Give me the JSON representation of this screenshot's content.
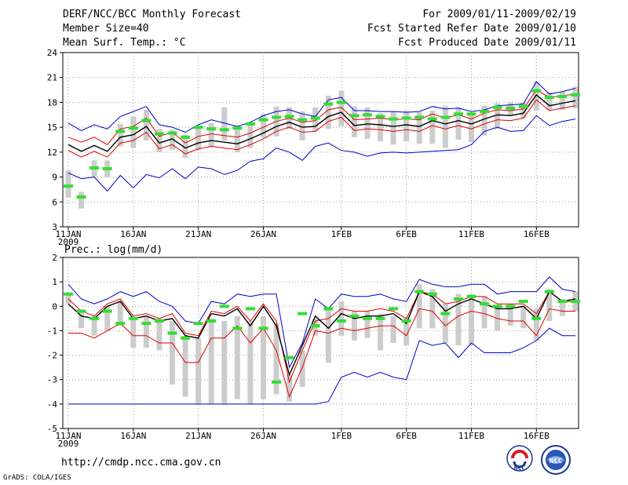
{
  "header": {
    "left": [
      "DERF/NCC/BCC Monthly Forecast",
      "Member Size=40",
      "Mean Surf. Temp.: °C"
    ],
    "right": [
      "For 2009/01/11-2009/02/19",
      "Fcst Started Refer Date 2009/01/10",
      "Fcst Produced Date 2009/01/11"
    ]
  },
  "footer": {
    "url": "http://cmdp.ncc.cma.gov.cn",
    "credit": "GrADS: COLA/IGES"
  },
  "logos": {
    "bcc_text": "BCC",
    "ncc_text": "NCC"
  },
  "colors": {
    "max_min": "#0000cc",
    "upper_lower": "#dd0000",
    "mean": "#000000",
    "box": "#cccccc",
    "observed": "#33dd33"
  },
  "chart_data": [
    {
      "type": "line",
      "title": "Mean Surf. Temp.: °C",
      "ylim": [
        3,
        24
      ],
      "yticks": [
        3,
        6,
        9,
        12,
        15,
        18,
        21,
        24
      ],
      "x_days": [
        1,
        2,
        3,
        4,
        5,
        6,
        7,
        8,
        9,
        10,
        11,
        12,
        13,
        14,
        15,
        16,
        17,
        18,
        19,
        20,
        21,
        22,
        23,
        24,
        25,
        26,
        27,
        28,
        29,
        30,
        31,
        32,
        33,
        34,
        35,
        36,
        37,
        38,
        39,
        40
      ],
      "xticks": [
        {
          "day": 1,
          "label": "11JAN",
          "sub": "2009"
        },
        {
          "day": 6,
          "label": "16JAN"
        },
        {
          "day": 11,
          "label": "21JAN"
        },
        {
          "day": 16,
          "label": "26JAN"
        },
        {
          "day": 22,
          "label": "1FEB"
        },
        {
          "day": 27,
          "label": "6FEB"
        },
        {
          "day": 32,
          "label": "11FEB"
        },
        {
          "day": 37,
          "label": "16FEB"
        }
      ],
      "series": [
        {
          "name": "max",
          "values": [
            15.5,
            14.6,
            15.3,
            14.8,
            16.3,
            16.9,
            17.5,
            15.3,
            15.0,
            14.4,
            15.3,
            15.9,
            15.5,
            15.1,
            15.6,
            16.4,
            16.9,
            17.1,
            16.6,
            16.3,
            18.3,
            18.6,
            17.0,
            17.0,
            16.9,
            16.9,
            16.8,
            16.9,
            17.5,
            17.2,
            17.3,
            16.9,
            17.1,
            17.6,
            17.7,
            17.8,
            20.5,
            19.0,
            19.3,
            19.7
          ]
        },
        {
          "name": "upper",
          "values": [
            13.8,
            13.2,
            13.8,
            12.9,
            14.8,
            15.1,
            16.1,
            13.9,
            14.4,
            13.1,
            13.9,
            14.2,
            14.0,
            13.8,
            14.3,
            15.0,
            15.7,
            16.1,
            15.6,
            15.8,
            17.1,
            17.4,
            15.9,
            16.0,
            16.1,
            15.9,
            16.0,
            15.9,
            16.6,
            16.1,
            16.5,
            16.0,
            16.7,
            17.1,
            17.0,
            17.2,
            19.5,
            18.6,
            18.8,
            19.0
          ]
        },
        {
          "name": "mean",
          "values": [
            12.9,
            12.1,
            12.8,
            12.1,
            13.8,
            14.1,
            15.1,
            13.1,
            13.6,
            12.5,
            13.1,
            13.4,
            13.2,
            13.0,
            13.6,
            14.3,
            15.1,
            15.6,
            15.0,
            15.1,
            16.3,
            16.8,
            15.2,
            15.4,
            15.3,
            15.1,
            15.3,
            15.1,
            15.8,
            15.4,
            15.8,
            15.4,
            16.0,
            16.5,
            16.4,
            16.7,
            18.9,
            17.6,
            17.9,
            18.2
          ]
        },
        {
          "name": "lower",
          "values": [
            12.2,
            11.4,
            12.1,
            11.4,
            13.1,
            13.4,
            14.4,
            12.4,
            12.9,
            11.8,
            12.4,
            12.7,
            12.5,
            12.3,
            12.9,
            13.6,
            14.5,
            15.0,
            14.4,
            14.5,
            15.7,
            16.2,
            14.6,
            14.8,
            14.7,
            14.5,
            14.7,
            14.5,
            15.2,
            14.8,
            15.2,
            14.8,
            15.4,
            15.9,
            15.8,
            16.1,
            18.3,
            17.0,
            17.3,
            17.6
          ]
        },
        {
          "name": "min",
          "values": [
            9.5,
            8.8,
            9.0,
            7.3,
            9.2,
            7.7,
            9.3,
            8.9,
            10.0,
            8.8,
            10.2,
            10.0,
            9.3,
            9.8,
            10.9,
            11.2,
            12.5,
            12.0,
            11.0,
            12.7,
            13.1,
            12.2,
            12.0,
            11.5,
            11.9,
            12.0,
            11.9,
            12.0,
            12.1,
            12.2,
            12.3,
            12.9,
            14.5,
            15.0,
            14.5,
            14.6,
            16.4,
            15.2,
            15.7,
            16.0
          ]
        },
        {
          "name": "box_top",
          "values": [
            9.8,
            7.2,
            11.0,
            11.0,
            15.4,
            16.3,
            17.1,
            14.8,
            14.7,
            14.1,
            14.9,
            15.5,
            17.4,
            15.2,
            15.4,
            16.6,
            17.5,
            17.4,
            16.9,
            17.4,
            18.8,
            19.4,
            17.5,
            17.4,
            16.7,
            16.9,
            17.0,
            16.8,
            17.0,
            17.6,
            17.4,
            16.7,
            17.6,
            17.9,
            18.0,
            18.0,
            20.5,
            19.2,
            19.3,
            19.9
          ]
        },
        {
          "name": "box_bottom",
          "values": [
            6.5,
            5.2,
            9.0,
            9.0,
            12.7,
            12.5,
            13.4,
            12.0,
            12.3,
            11.3,
            12.2,
            12.6,
            13.4,
            12.0,
            12.5,
            13.8,
            13.9,
            14.8,
            13.4,
            14.5,
            14.8,
            15.1,
            13.8,
            13.6,
            13.3,
            12.9,
            13.3,
            13.0,
            13.0,
            12.5,
            13.5,
            13.2,
            14.0,
            14.8,
            16.4,
            16.1,
            17.0,
            17.1,
            17.1,
            17.3
          ]
        },
        {
          "name": "observed",
          "values": [
            7.9,
            6.6,
            10.1,
            10.0,
            14.5,
            14.9,
            15.8,
            14.2,
            14.3,
            13.8,
            15.0,
            14.8,
            14.7,
            14.9,
            15.4,
            15.9,
            16.2,
            16.3,
            15.9,
            16.1,
            17.8,
            18.0,
            16.4,
            16.5,
            16.3,
            16.0,
            16.1,
            16.2,
            16.0,
            16.2,
            16.6,
            16.6,
            16.9,
            17.4,
            17.3,
            17.5,
            19.4,
            18.6,
            18.7,
            18.9
          ]
        }
      ]
    },
    {
      "type": "line",
      "title": "Prec.: log(mm/d)",
      "ylim": [
        -5,
        2
      ],
      "yticks": [
        -5,
        -4,
        -3,
        -2,
        -1,
        0,
        1,
        2
      ],
      "x_days": [
        1,
        2,
        3,
        4,
        5,
        6,
        7,
        8,
        9,
        10,
        11,
        12,
        13,
        14,
        15,
        16,
        17,
        18,
        19,
        20,
        21,
        22,
        23,
        24,
        25,
        26,
        27,
        28,
        29,
        30,
        31,
        32,
        33,
        34,
        35,
        36,
        37,
        38,
        39,
        40
      ],
      "xticks": [
        {
          "day": 1,
          "label": "11JAN",
          "sub": "2009"
        },
        {
          "day": 6,
          "label": "16JAN"
        },
        {
          "day": 11,
          "label": "21JAN"
        },
        {
          "day": 16,
          "label": "26JAN"
        },
        {
          "day": 22,
          "label": "1FEB"
        },
        {
          "day": 27,
          "label": "6FEB"
        },
        {
          "day": 32,
          "label": "11FEB"
        },
        {
          "day": 37,
          "label": "16FEB"
        }
      ],
      "series": [
        {
          "name": "max",
          "values": [
            0.9,
            0.3,
            0.1,
            0.3,
            0.6,
            0.4,
            0.6,
            0.2,
            0.0,
            -0.6,
            -0.7,
            0.2,
            0.1,
            0.5,
            0.4,
            0.5,
            0.5,
            -2.5,
            -1.5,
            0.3,
            -0.1,
            0.5,
            0.4,
            0.4,
            0.5,
            0.3,
            0.2,
            1.1,
            0.9,
            0.8,
            0.8,
            0.9,
            0.9,
            0.5,
            0.6,
            0.6,
            0.6,
            1.2,
            0.7,
            0.6
          ]
        },
        {
          "name": "upper",
          "values": [
            0.3,
            -0.2,
            -0.4,
            0.1,
            0.3,
            -0.4,
            -0.3,
            -0.5,
            -0.3,
            -1.1,
            -1.2,
            -0.2,
            -0.3,
            0.0,
            -0.6,
            0.1,
            -0.6,
            -3.1,
            -1.8,
            -0.6,
            -0.5,
            -0.1,
            -0.2,
            -0.2,
            -0.1,
            -0.2,
            -0.5,
            0.6,
            0.5,
            0.1,
            0.2,
            0.4,
            0.4,
            0.1,
            0.1,
            0.1,
            -0.3,
            0.6,
            0.2,
            0.2
          ]
        },
        {
          "name": "mean",
          "values": [
            0.1,
            -0.4,
            -0.5,
            0.0,
            0.2,
            -0.5,
            -0.4,
            -0.6,
            -0.5,
            -1.2,
            -1.3,
            -0.3,
            -0.4,
            -0.1,
            -0.8,
            0.0,
            -0.8,
            -2.8,
            -1.6,
            -0.4,
            -0.9,
            -0.3,
            -0.5,
            -0.4,
            -0.4,
            -0.3,
            -0.7,
            0.6,
            0.4,
            -0.2,
            0.1,
            0.3,
            0.1,
            -0.1,
            -0.1,
            0.0,
            -0.5,
            0.6,
            0.2,
            0.3
          ]
        },
        {
          "name": "lower",
          "values": [
            -1.1,
            -1.1,
            -1.3,
            -1.0,
            -0.7,
            -1.2,
            -1.2,
            -1.5,
            -1.5,
            -2.3,
            -2.3,
            -1.3,
            -1.3,
            -0.8,
            -1.5,
            -0.9,
            -1.8,
            -3.7,
            -2.5,
            -1.0,
            -1.1,
            -0.9,
            -1.0,
            -0.9,
            -0.8,
            -0.8,
            -1.2,
            -0.1,
            -0.2,
            -0.8,
            -0.4,
            -0.2,
            -0.3,
            -0.5,
            -0.6,
            -0.6,
            -1.2,
            -0.1,
            -0.2,
            -0.2
          ]
        },
        {
          "name": "min",
          "values": [
            -4.0,
            -4.0,
            -4.0,
            -4.0,
            -4.0,
            -4.0,
            -4.0,
            -4.0,
            -4.0,
            -4.0,
            -4.0,
            -4.0,
            -4.0,
            -4.0,
            -4.0,
            -4.0,
            -4.0,
            -4.0,
            -4.0,
            -4.0,
            -3.9,
            -2.9,
            -2.7,
            -2.9,
            -2.7,
            -2.9,
            -3.0,
            -1.4,
            -1.6,
            -1.5,
            -2.1,
            -1.5,
            -1.9,
            -1.9,
            -1.9,
            -1.7,
            -1.4,
            -0.9,
            -1.2,
            -1.2
          ]
        },
        {
          "name": "box_top",
          "values": [
            0.5,
            -0.2,
            -0.4,
            0.0,
            0.2,
            -0.5,
            -0.4,
            -0.5,
            -0.6,
            -1.2,
            -1.3,
            -0.5,
            -0.6,
            -0.4,
            -0.6,
            -0.4,
            -0.7,
            -2.8,
            -1.8,
            -0.5,
            -0.1,
            0.2,
            -0.2,
            -0.2,
            -0.3,
            -0.4,
            -0.5,
            0.9,
            0.7,
            0.1,
            0.5,
            0.5,
            0.4,
            0.0,
            0.1,
            0.0,
            -0.1,
            0.7,
            0.3,
            0.6
          ]
        },
        {
          "name": "box_bottom",
          "values": [
            0.1,
            -0.9,
            -1.2,
            -1.0,
            -0.8,
            -1.7,
            -1.7,
            -1.8,
            -3.2,
            -3.7,
            -4.0,
            -4.0,
            -4.0,
            -3.8,
            -4.0,
            -3.8,
            -3.6,
            -3.9,
            -3.3,
            -1.2,
            -2.3,
            -1.2,
            -1.4,
            -1.3,
            -1.8,
            -1.5,
            -1.6,
            -0.9,
            -0.9,
            -1.5,
            -1.6,
            -1.6,
            -0.9,
            -1.0,
            -0.8,
            -0.9,
            -1.4,
            -0.6,
            -0.4,
            -0.2
          ]
        },
        {
          "name": "observed",
          "values": [
            0.5,
            -0.2,
            -0.5,
            -0.2,
            -0.7,
            -0.5,
            -0.7,
            -0.6,
            -1.1,
            -1.3,
            -0.7,
            -0.6,
            0.0,
            -0.9,
            -0.1,
            -0.9,
            -3.1,
            -2.1,
            -0.3,
            -0.8,
            -0.1,
            -0.6,
            -0.4,
            -0.5,
            -0.5,
            -0.1,
            -0.6,
            0.6,
            0.5,
            -0.3,
            0.3,
            0.4,
            0.1,
            0.0,
            0.0,
            0.2,
            -0.5,
            0.6,
            0.2,
            0.2
          ]
        }
      ]
    }
  ]
}
